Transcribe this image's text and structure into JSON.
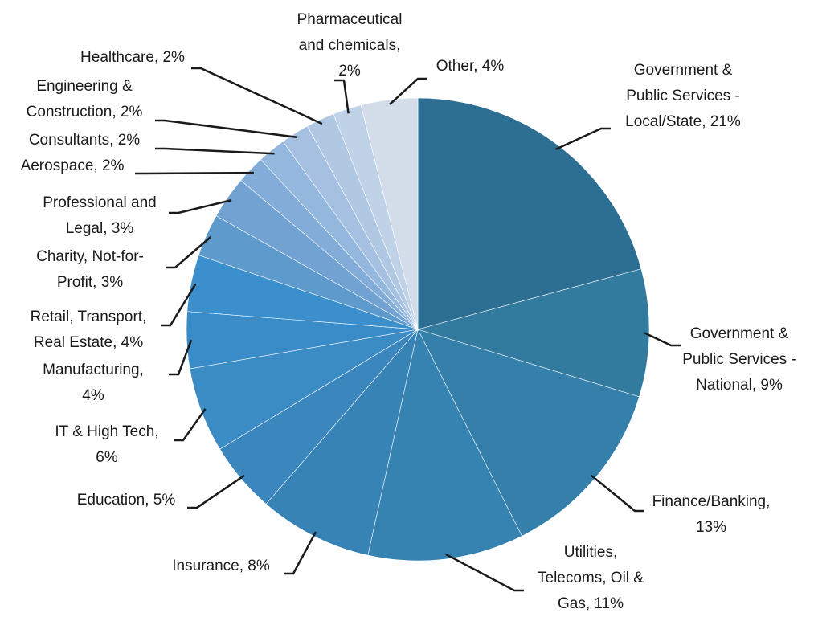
{
  "chart_data": {
    "type": "pie",
    "categories": [
      "Government &\nPublic Services -\nLocal/State, 21%",
      "Government &\nPublic Services -\nNational, 9%",
      "Finance/Banking,\n13%",
      "Utilities,\nTelecoms, Oil &\nGas, 11%",
      "Insurance, 8%",
      "Education, 5%",
      "IT & High Tech,\n6%",
      "Manufacturing,\n4%",
      "Retail, Transport,\nReal Estate,  4%",
      "Charity, Not-for-\nProfit, 3%",
      "Professional and\nLegal, 3%",
      "Aerospace, 2%",
      "Consultants, 2%",
      "Engineering &\nConstruction, 2%",
      "Healthcare, 2%",
      "Pharmaceutical\nand chemicals,\n2%",
      "Other, 4%"
    ],
    "values": [
      21,
      9,
      13,
      11,
      8,
      5,
      6,
      4,
      4,
      3,
      3,
      2,
      2,
      2,
      2,
      2,
      4
    ],
    "colors": [
      "#2d6e93",
      "#337a9f",
      "#3480ab",
      "#3682b1",
      "#3783b5",
      "#3a86bd",
      "#3b8bc5",
      "#3a8cc9",
      "#3a8fcc",
      "#5f9acd",
      "#71a2d2",
      "#84acd9",
      "#94b7dd",
      "#a5c0e0",
      "#b1c8e3",
      "#c0d2e8",
      "#d2dde9"
    ]
  }
}
